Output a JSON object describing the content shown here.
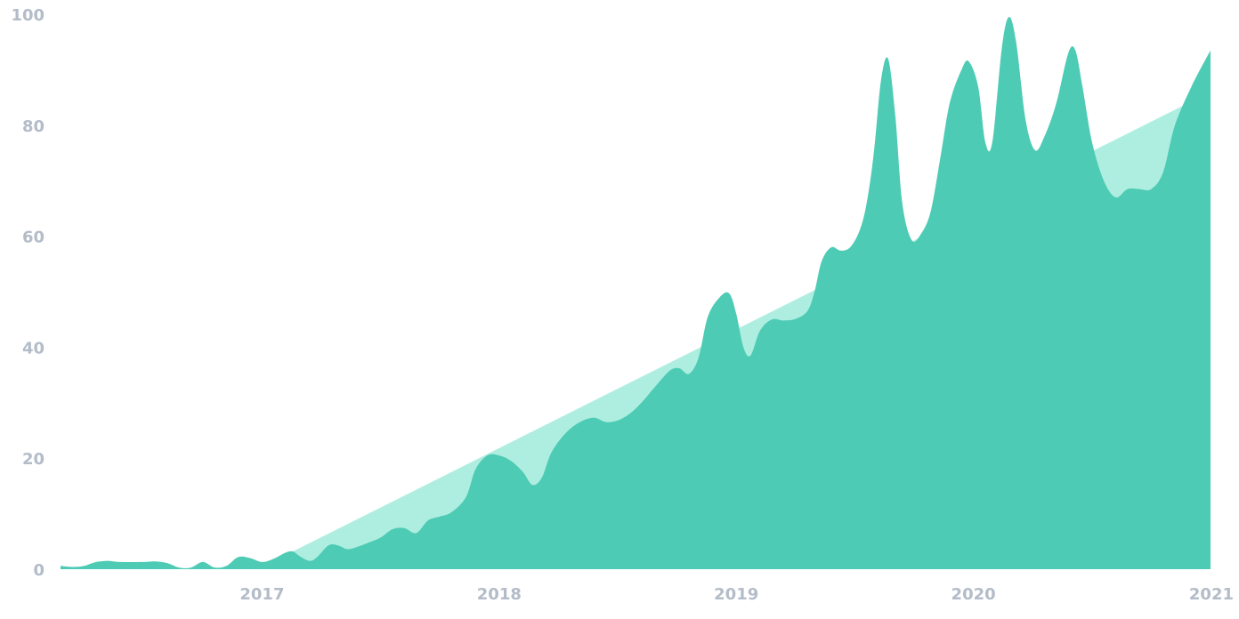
{
  "chart_data": {
    "type": "area",
    "title": "",
    "xlabel": "",
    "ylabel": "",
    "x_ticks": [
      "2017",
      "2018",
      "2019",
      "2020",
      "2021"
    ],
    "y_ticks": [
      "0",
      "20",
      "40",
      "60",
      "80",
      "100"
    ],
    "xlim": [
      2016.15,
      2021.0
    ],
    "ylim": [
      0,
      100
    ],
    "grid": false,
    "legend": "none",
    "series": [
      {
        "color": "#4ecbb4",
        "points": [
          [
            2016.15,
            0.6
          ],
          [
            2016.2,
            0.4
          ],
          [
            2016.25,
            0.6
          ],
          [
            2016.3,
            1.3
          ],
          [
            2016.35,
            1.5
          ],
          [
            2016.4,
            1.3
          ],
          [
            2016.5,
            1.3
          ],
          [
            2016.55,
            1.4
          ],
          [
            2016.6,
            1.1
          ],
          [
            2016.65,
            0.3
          ],
          [
            2016.7,
            0.3
          ],
          [
            2016.75,
            1.3
          ],
          [
            2016.8,
            0.3
          ],
          [
            2016.85,
            0.6
          ],
          [
            2016.9,
            2.2
          ],
          [
            2016.95,
            2.0
          ],
          [
            2017.0,
            1.3
          ],
          [
            2017.05,
            1.9
          ],
          [
            2017.1,
            3.0
          ],
          [
            2017.13,
            3.2
          ],
          [
            2017.16,
            2.3
          ],
          [
            2017.2,
            1.5
          ],
          [
            2017.23,
            2.1
          ],
          [
            2017.28,
            4.3
          ],
          [
            2017.32,
            4.3
          ],
          [
            2017.36,
            3.6
          ],
          [
            2017.4,
            4.0
          ],
          [
            2017.45,
            4.8
          ],
          [
            2017.5,
            5.7
          ],
          [
            2017.55,
            7.2
          ],
          [
            2017.6,
            7.4
          ],
          [
            2017.65,
            6.5
          ],
          [
            2017.7,
            8.8
          ],
          [
            2017.75,
            9.5
          ],
          [
            2017.8,
            10.3
          ],
          [
            2017.86,
            13.0
          ],
          [
            2017.9,
            18.0
          ],
          [
            2017.95,
            20.5
          ],
          [
            2018.0,
            20.5
          ],
          [
            2018.05,
            19.5
          ],
          [
            2018.1,
            17.5
          ],
          [
            2018.14,
            15.2
          ],
          [
            2018.18,
            16.5
          ],
          [
            2018.22,
            21.0
          ],
          [
            2018.28,
            24.5
          ],
          [
            2018.34,
            26.5
          ],
          [
            2018.4,
            27.3
          ],
          [
            2018.45,
            26.5
          ],
          [
            2018.5,
            26.8
          ],
          [
            2018.55,
            28.0
          ],
          [
            2018.6,
            30.0
          ],
          [
            2018.66,
            33.0
          ],
          [
            2018.72,
            35.8
          ],
          [
            2018.76,
            36.2
          ],
          [
            2018.8,
            35.2
          ],
          [
            2018.84,
            38.0
          ],
          [
            2018.88,
            45.5
          ],
          [
            2018.93,
            49.0
          ],
          [
            2018.97,
            49.7
          ],
          [
            2019.0,
            46.0
          ],
          [
            2019.03,
            40.0
          ],
          [
            2019.06,
            38.5
          ],
          [
            2019.1,
            43.0
          ],
          [
            2019.15,
            45.0
          ],
          [
            2019.2,
            44.8
          ],
          [
            2019.25,
            45.1
          ],
          [
            2019.3,
            46.5
          ],
          [
            2019.33,
            50.0
          ],
          [
            2019.36,
            55.5
          ],
          [
            2019.4,
            58.0
          ],
          [
            2019.44,
            57.4
          ],
          [
            2019.48,
            58.0
          ],
          [
            2019.52,
            61.0
          ],
          [
            2019.55,
            66.0
          ],
          [
            2019.58,
            75.0
          ],
          [
            2019.61,
            88.0
          ],
          [
            2019.64,
            92.0
          ],
          [
            2019.67,
            82.0
          ],
          [
            2019.7,
            66.0
          ],
          [
            2019.74,
            59.3
          ],
          [
            2019.78,
            60.5
          ],
          [
            2019.82,
            64.5
          ],
          [
            2019.86,
            74.0
          ],
          [
            2019.9,
            84.0
          ],
          [
            2019.95,
            90.0
          ],
          [
            2019.98,
            91.5
          ],
          [
            2020.02,
            87.0
          ],
          [
            2020.05,
            77.0
          ],
          [
            2020.08,
            77.0
          ],
          [
            2020.12,
            94.0
          ],
          [
            2020.15,
            99.5
          ],
          [
            2020.18,
            95.0
          ],
          [
            2020.22,
            81.0
          ],
          [
            2020.26,
            75.5
          ],
          [
            2020.3,
            78.0
          ],
          [
            2020.35,
            84.0
          ],
          [
            2020.4,
            93.0
          ],
          [
            2020.43,
            93.5
          ],
          [
            2020.46,
            87.0
          ],
          [
            2020.5,
            77.0
          ],
          [
            2020.55,
            70.0
          ],
          [
            2020.6,
            67.0
          ],
          [
            2020.65,
            68.5
          ],
          [
            2020.7,
            68.5
          ],
          [
            2020.75,
            68.5
          ],
          [
            2020.8,
            71.5
          ],
          [
            2020.85,
            80.0
          ],
          [
            2020.92,
            87.0
          ],
          [
            2021.0,
            93.5
          ]
        ]
      },
      {
        "color": "#aeeee0",
        "points": [
          [
            2016.98,
            0.0
          ],
          [
            2021.0,
            86.0
          ]
        ]
      }
    ]
  }
}
